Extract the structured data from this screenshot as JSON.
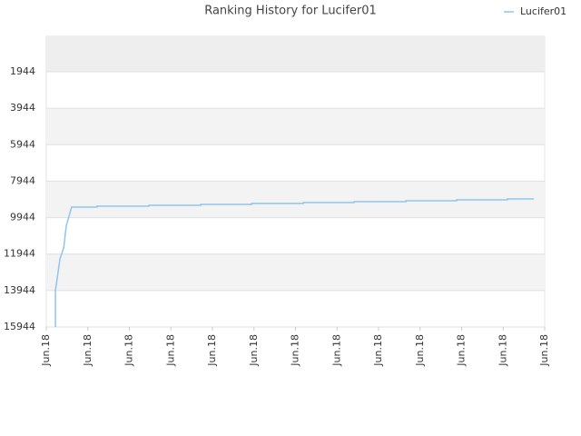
{
  "chart_data": {
    "type": "line",
    "title": "Ranking History for Lucifer01",
    "x": [
      0.22,
      0.22,
      0.33,
      0.42,
      0.48,
      0.61,
      1.22,
      1.22,
      2.47,
      2.47,
      3.72,
      3.72,
      4.94,
      4.94,
      6.19,
      6.19,
      7.41,
      7.41,
      8.66,
      8.66,
      9.88,
      9.88,
      11.1,
      11.1,
      11.74
    ],
    "series": [
      {
        "name": "Lucifer01",
        "color": "#90c4ef",
        "values": [
          15944,
          13944,
          12200,
          11600,
          10400,
          9370,
          9370,
          9320,
          9320,
          9270,
          9270,
          9220,
          9220,
          9170,
          9170,
          9120,
          9120,
          9070,
          9070,
          9020,
          9020,
          8970,
          8970,
          8920,
          8920
        ]
      }
    ],
    "xlim": [
      0,
      12
    ],
    "xticks": [
      {
        "value": 0,
        "label": "Jun.18"
      },
      {
        "value": 1,
        "label": "Jun.18"
      },
      {
        "value": 2,
        "label": "Jun.18"
      },
      {
        "value": 3,
        "label": "Jun.18"
      },
      {
        "value": 4,
        "label": "Jun.18"
      },
      {
        "value": 5,
        "label": "Jun.18"
      },
      {
        "value": 6,
        "label": "Jun.18"
      },
      {
        "value": 7,
        "label": "Jun.18"
      },
      {
        "value": 8,
        "label": "Jun.18"
      },
      {
        "value": 9,
        "label": "Jun.18"
      },
      {
        "value": 10,
        "label": "Jun.18"
      },
      {
        "value": 11,
        "label": "Jun.18"
      },
      {
        "value": 12,
        "label": "Jun.18"
      }
    ],
    "ylim": [
      15944,
      1
    ],
    "yticks": [
      1944,
      3944,
      5944,
      7944,
      9944,
      11944,
      13944,
      15944
    ],
    "grid": true,
    "legend": "top-right"
  }
}
